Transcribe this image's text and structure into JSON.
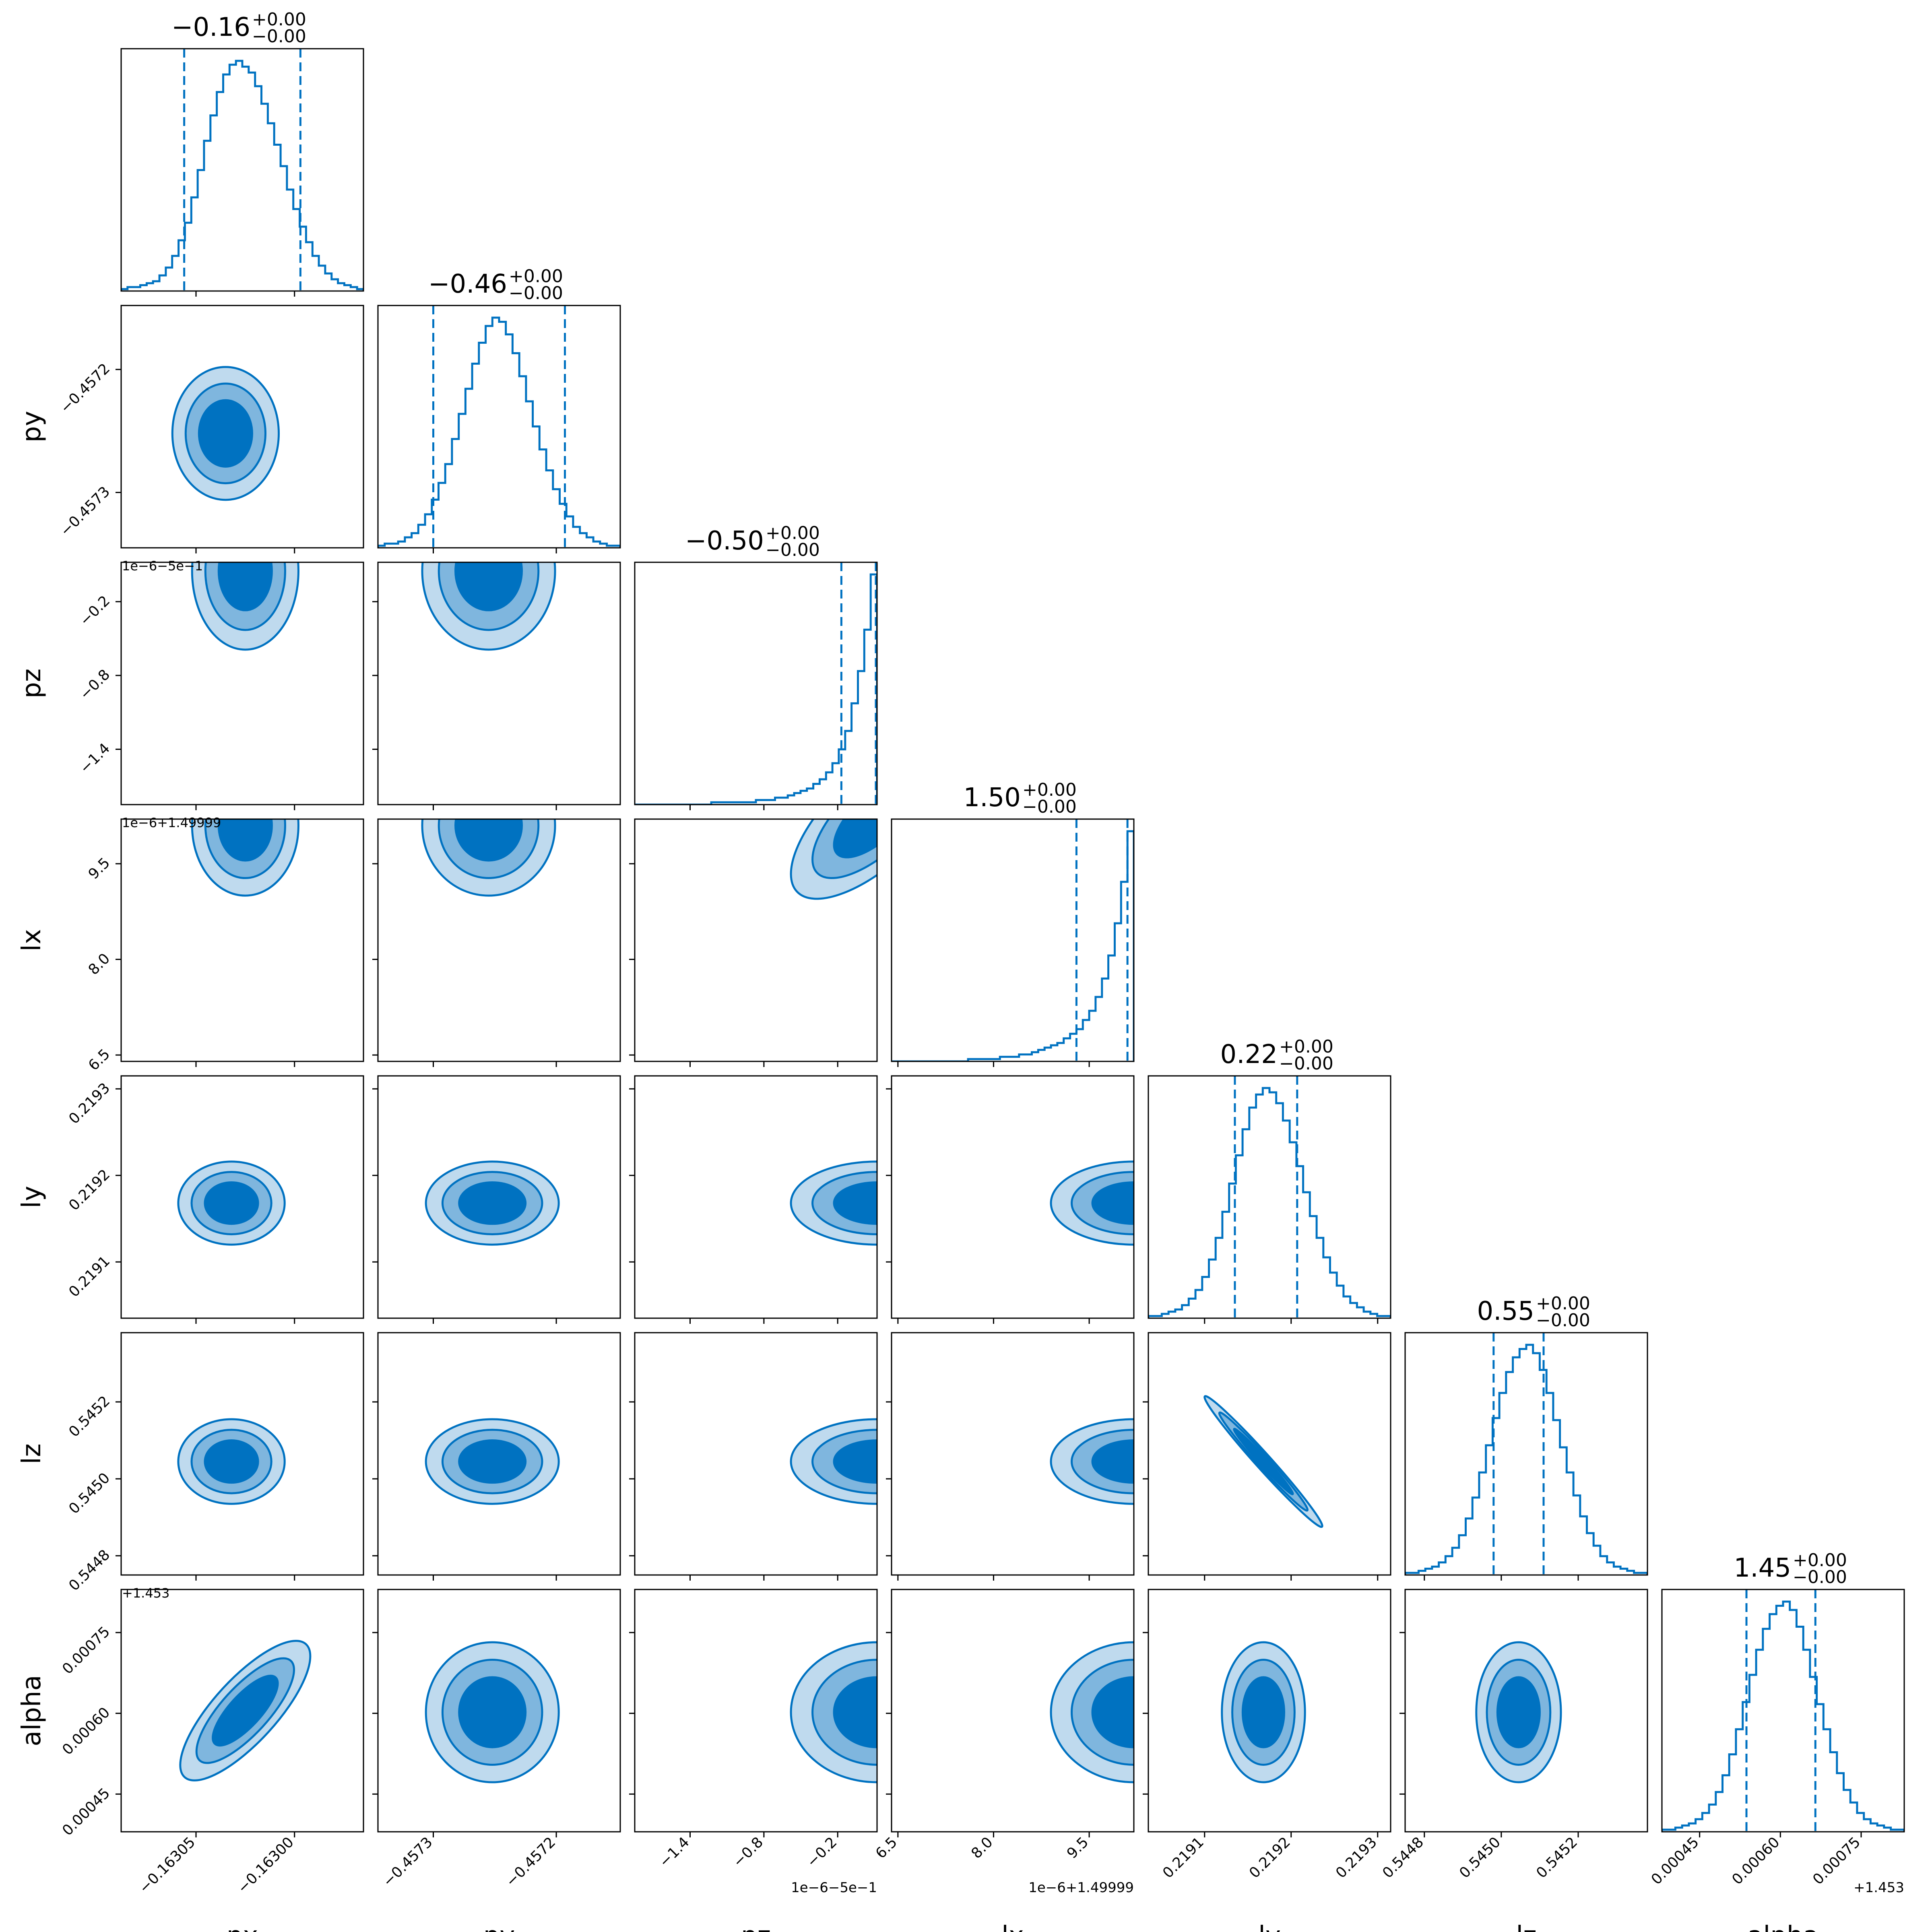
{
  "chart_data": {
    "type": "corner",
    "params": [
      "px",
      "py",
      "pz",
      "lx",
      "ly",
      "lz",
      "alpha"
    ],
    "titles": [
      {
        "value": "−0.16",
        "plus": "+0.00",
        "minus": "−0.00"
      },
      {
        "value": "−0.46",
        "plus": "+0.00",
        "minus": "−0.00"
      },
      {
        "value": "−0.50",
        "plus": "+0.00",
        "minus": "−0.00"
      },
      {
        "value": "1.50",
        "plus": "+0.00",
        "minus": "−0.00"
      },
      {
        "value": "0.22",
        "plus": "+0.00",
        "minus": "−0.00"
      },
      {
        "value": "0.55",
        "plus": "+0.00",
        "minus": "−0.00"
      },
      {
        "value": "1.45",
        "plus": "+0.00",
        "minus": "−0.00"
      }
    ],
    "offset_labels": [
      "",
      "",
      "1e−6−5e−1",
      "1e−6+1.49999",
      "",
      "",
      "+1.453"
    ],
    "ranges": [
      [
        -0.163088,
        -0.162965
      ],
      [
        -0.457345,
        -0.457148
      ],
      [
        -1.85,
        0.12
      ],
      [
        6.4,
        10.2
      ],
      [
        0.219035,
        0.219315
      ],
      [
        0.54475,
        0.54538
      ],
      [
        0.00038,
        0.00083
      ]
    ],
    "ticks": [
      {
        "values": [
          -0.16305,
          -0.163
        ],
        "labels": [
          "−0.16305",
          "−0.16300"
        ]
      },
      {
        "values": [
          -0.4573,
          -0.4572
        ],
        "labels": [
          "−0.4573",
          "−0.4572"
        ]
      },
      {
        "values": [
          -1.4,
          -0.8,
          -0.2
        ],
        "labels": [
          "−1.4",
          "−0.8",
          "−0.2"
        ]
      },
      {
        "values": [
          6.5,
          8.0,
          9.5
        ],
        "labels": [
          "6.5",
          "8.0",
          "9.5"
        ]
      },
      {
        "values": [
          0.2191,
          0.2192,
          0.2193
        ],
        "labels": [
          "0.2191",
          "0.2192",
          "0.2193"
        ]
      },
      {
        "values": [
          0.5448,
          0.545,
          0.5452
        ],
        "labels": [
          "0.5448",
          "0.5450",
          "0.5452"
        ]
      },
      {
        "values": [
          0.00045,
          0.0006,
          0.00075
        ],
        "labels": [
          "0.00045",
          "0.00060",
          "0.00075"
        ]
      }
    ],
    "quantiles": [
      [
        -0.163056,
        -0.162997
      ],
      [
        -0.4573,
        -0.457193
      ],
      [
        -0.17,
        0.11
      ],
      [
        9.3,
        10.1
      ],
      [
        0.219135,
        0.219207
      ],
      [
        0.54498,
        0.54511
      ],
      [
        0.000537,
        0.000665
      ]
    ],
    "histograms": [
      [
        1,
        2,
        2,
        3,
        4,
        5,
        8,
        12,
        18,
        26,
        35,
        48,
        62,
        77,
        90,
        102,
        111,
        116,
        118,
        115,
        112,
        105,
        96,
        86,
        75,
        64,
        52,
        42,
        33,
        25,
        18,
        13,
        9,
        6,
        4,
        3,
        2,
        1
      ],
      [
        1,
        2,
        2,
        3,
        5,
        7,
        11,
        16,
        23,
        31,
        40,
        52,
        64,
        76,
        88,
        98,
        106,
        110,
        108,
        102,
        93,
        82,
        70,
        58,
        47,
        37,
        28,
        21,
        15,
        10,
        7,
        5,
        3,
        2,
        1,
        1
      ],
      [
        0,
        0,
        0,
        0,
        0,
        0,
        0,
        0,
        0,
        0,
        0,
        0,
        1,
        1,
        1,
        1,
        1,
        1,
        1,
        2,
        2,
        2,
        3,
        3,
        4,
        5,
        6,
        7,
        9,
        11,
        14,
        18,
        24,
        32,
        44,
        58,
        76,
        100
      ],
      [
        0,
        0,
        0,
        0,
        0,
        0,
        0,
        0,
        0,
        0,
        0,
        0,
        1,
        1,
        1,
        1,
        1,
        2,
        2,
        2,
        3,
        3,
        4,
        5,
        6,
        7,
        8,
        10,
        12,
        14,
        18,
        22,
        28,
        36,
        46,
        60,
        78,
        100
      ],
      [
        1,
        1,
        2,
        3,
        4,
        6,
        9,
        13,
        19,
        27,
        37,
        49,
        62,
        75,
        87,
        97,
        103,
        106,
        104,
        99,
        91,
        81,
        70,
        58,
        47,
        37,
        28,
        21,
        15,
        10,
        7,
        5,
        3,
        2,
        1,
        1
      ],
      [
        1,
        1,
        2,
        3,
        4,
        6,
        9,
        13,
        19,
        27,
        37,
        49,
        62,
        75,
        87,
        97,
        104,
        108,
        110,
        106,
        98,
        87,
        74,
        61,
        49,
        38,
        28,
        20,
        14,
        9,
        6,
        4,
        3,
        2,
        1,
        1
      ],
      [
        1,
        1,
        2,
        3,
        4,
        6,
        9,
        13,
        19,
        27,
        37,
        49,
        62,
        75,
        87,
        97,
        104,
        108,
        110,
        106,
        98,
        87,
        74,
        61,
        49,
        38,
        28,
        20,
        14,
        9,
        6,
        4,
        3,
        2,
        1,
        1
      ]
    ],
    "pairs": [
      {
        "x": "px",
        "y": "py",
        "center": [
          -0.163035,
          -0.457252
        ],
        "sigma_x": 1.35e-05,
        "sigma_y": 2.7e-05,
        "rho": 0.0
      },
      {
        "x": "px",
        "y": "pz",
        "center": [
          -0.163025,
          0.05
        ],
        "sigma_x": 1.35e-05,
        "sigma_y": 0.32,
        "rho": 0.0
      },
      {
        "x": "py",
        "y": "pz",
        "center": [
          -0.457255,
          0.05
        ],
        "sigma_x": 2.7e-05,
        "sigma_y": 0.32,
        "rho": 0.0
      },
      {
        "x": "px",
        "y": "lx",
        "center": [
          -0.163025,
          10.1
        ],
        "sigma_x": 1.35e-05,
        "sigma_y": 0.55,
        "rho": 0.0
      },
      {
        "x": "py",
        "y": "lx",
        "center": [
          -0.457255,
          10.1
        ],
        "sigma_x": 2.7e-05,
        "sigma_y": 0.55,
        "rho": 0.0
      },
      {
        "x": "pz",
        "y": "lx",
        "center": [
          0.12,
          10.25
        ],
        "sigma_x": 0.35,
        "sigma_y": 0.65,
        "rho": 0.7
      },
      {
        "x": "px",
        "y": "ly",
        "center": [
          -0.163032,
          0.219168
        ],
        "sigma_x": 1.35e-05,
        "sigma_y": 2.4e-05,
        "rho": 0.0
      },
      {
        "x": "py",
        "y": "ly",
        "center": [
          -0.457252,
          0.219168
        ],
        "sigma_x": 2.7e-05,
        "sigma_y": 2.4e-05,
        "rho": 0.0
      },
      {
        "x": "pz",
        "y": "ly",
        "center": [
          0.12,
          0.219168
        ],
        "sigma_x": 0.35,
        "sigma_y": 2.4e-05,
        "rho": 0.0
      },
      {
        "x": "lx",
        "y": "ly",
        "center": [
          10.2,
          0.219168
        ],
        "sigma_x": 0.65,
        "sigma_y": 2.4e-05,
        "rho": 0.0
      },
      {
        "x": "px",
        "y": "lz",
        "center": [
          -0.163032,
          0.545045
        ],
        "sigma_x": 1.35e-05,
        "sigma_y": 5.5e-05,
        "rho": 0.0
      },
      {
        "x": "py",
        "y": "lz",
        "center": [
          -0.457252,
          0.545045
        ],
        "sigma_x": 2.7e-05,
        "sigma_y": 5.5e-05,
        "rho": 0.0
      },
      {
        "x": "pz",
        "y": "lz",
        "center": [
          0.12,
          0.545045
        ],
        "sigma_x": 0.35,
        "sigma_y": 5.5e-05,
        "rho": 0.0
      },
      {
        "x": "lx",
        "y": "lz",
        "center": [
          10.2,
          0.545045
        ],
        "sigma_x": 0.65,
        "sigma_y": 5.5e-05,
        "rho": 0.0
      },
      {
        "x": "ly",
        "y": "lz",
        "center": [
          0.219168,
          0.545045
        ],
        "sigma_x": 3.4e-05,
        "sigma_y": 8.5e-05,
        "rho": -0.985
      },
      {
        "x": "px",
        "y": "alpha",
        "center": [
          -0.163025,
          0.000605
        ],
        "sigma_x": 1.65e-05,
        "sigma_y": 6.48e-05,
        "rho": 0.78
      },
      {
        "x": "py",
        "y": "alpha",
        "center": [
          -0.457252,
          0.000602
        ],
        "sigma_x": 2.7e-05,
        "sigma_y": 6.5e-05,
        "rho": 0.0
      },
      {
        "x": "pz",
        "y": "alpha",
        "center": [
          0.12,
          0.000602
        ],
        "sigma_x": 0.35,
        "sigma_y": 6.5e-05,
        "rho": 0.0
      },
      {
        "x": "lx",
        "y": "alpha",
        "center": [
          10.2,
          0.000602
        ],
        "sigma_x": 0.65,
        "sigma_y": 6.5e-05,
        "rho": 0.0
      },
      {
        "x": "ly",
        "y": "alpha",
        "center": [
          0.219168,
          0.000602
        ],
        "sigma_x": 2.4e-05,
        "sigma_y": 6.5e-05,
        "rho": 0.0
      },
      {
        "x": "lz",
        "y": "alpha",
        "center": [
          0.545045,
          0.000602
        ],
        "sigma_x": 5.5e-05,
        "sigma_y": 6.5e-05,
        "rho": 0.0
      }
    ],
    "contour_levels_sigma": [
      0.5,
      1.0,
      1.5,
      2.0
    ],
    "colors": {
      "line": "#0072c1",
      "fill_levels": [
        "#0072c1",
        "#7fb6de",
        "#bfdaee"
      ],
      "axes": "#000000",
      "background": "#ffffff"
    }
  }
}
